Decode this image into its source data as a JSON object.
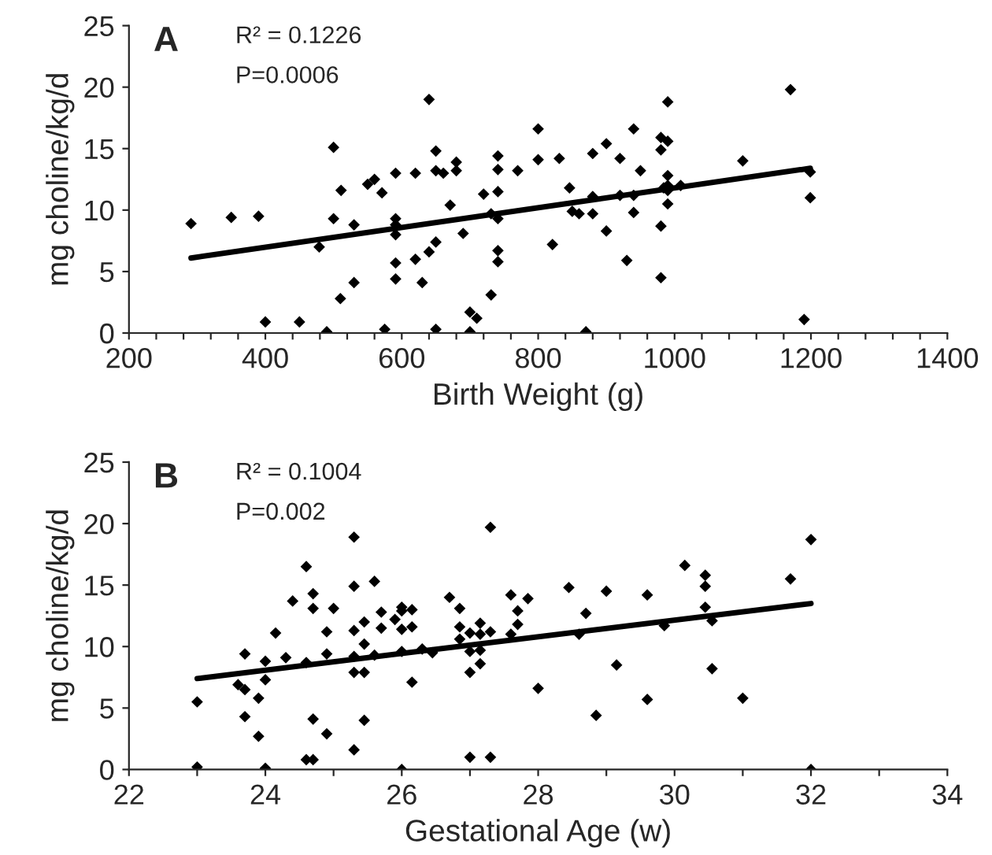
{
  "chart_data": [
    {
      "type": "scatter",
      "title": "A",
      "xlabel": "Birth Weight (g)",
      "ylabel": "mg choline/kg/d",
      "annotations": [
        "R² = 0.1226",
        "P=0.0006"
      ],
      "marker": "diamond",
      "grid": false,
      "legend": false,
      "xlim": [
        200,
        1400
      ],
      "ylim": [
        0,
        25
      ],
      "yticks": [
        0,
        5,
        10,
        15,
        20,
        25
      ],
      "xticks": [
        200,
        {
          "value": 240,
          "label": null
        },
        {
          "value": 280,
          "label": null
        },
        {
          "value": 320,
          "label": null
        },
        {
          "value": 360,
          "label": null
        },
        400,
        {
          "value": 440,
          "label": null
        },
        {
          "value": 480,
          "label": null
        },
        {
          "value": 520,
          "label": null
        },
        {
          "value": 560,
          "label": null
        },
        600,
        {
          "value": 640,
          "label": null
        },
        {
          "value": 680,
          "label": null
        },
        {
          "value": 720,
          "label": null
        },
        {
          "value": 760,
          "label": null
        },
        800,
        {
          "value": 840,
          "label": null
        },
        {
          "value": 880,
          "label": null
        },
        {
          "value": 920,
          "label": null
        },
        {
          "value": 960,
          "label": null
        },
        1000,
        {
          "value": 1040,
          "label": null
        },
        {
          "value": 1080,
          "label": null
        },
        {
          "value": 1120,
          "label": null
        },
        {
          "value": 1160,
          "label": null
        },
        1200,
        {
          "value": 1240,
          "label": null
        },
        {
          "value": 1280,
          "label": null
        },
        {
          "value": 1320,
          "label": null
        },
        {
          "value": 1360,
          "label": null
        },
        1400
      ],
      "series": [
        {
          "color": "#000000",
          "x": [
            291,
            350,
            390,
            400,
            450,
            479,
            490,
            500,
            500,
            511,
            510,
            530,
            530,
            550,
            560,
            571,
            575,
            591,
            591,
            591,
            591,
            591,
            591,
            620,
            620,
            630,
            640,
            640,
            650,
            650,
            650,
            650,
            661,
            671,
            680,
            680,
            690,
            700,
            700,
            710,
            720,
            731,
            731,
            741,
            741,
            741,
            741,
            741,
            741,
            770,
            800,
            800,
            831,
            846,
            821,
            850,
            860,
            870,
            880,
            880,
            880,
            900,
            900,
            920,
            920,
            930,
            940,
            940,
            940,
            950,
            980,
            980,
            980,
            980,
            990,
            990,
            990,
            990,
            990,
            990,
            984,
            1009,
            1100,
            1170,
            1190,
            1199,
            1199
          ],
          "values": [
            8.9,
            9.4,
            9.5,
            0.9,
            0.9,
            7.0,
            0.1,
            15.1,
            9.3,
            11.6,
            2.8,
            8.8,
            4.1,
            12.1,
            12.5,
            11.4,
            0.3,
            13.0,
            9.3,
            8.8,
            8.0,
            5.7,
            4.4,
            13.0,
            6.0,
            4.1,
            19.0,
            6.6,
            14.8,
            13.2,
            7.4,
            0.3,
            13.0,
            10.4,
            13.9,
            13.2,
            8.1,
            0.1,
            1.7,
            1.2,
            11.3,
            3.1,
            9.7,
            14.4,
            13.3,
            11.5,
            9.3,
            6.7,
            5.8,
            13.2,
            16.6,
            14.1,
            14.2,
            11.8,
            7.2,
            9.9,
            9.7,
            0.1,
            14.6,
            11.1,
            9.7,
            15.4,
            8.3,
            14.2,
            11.2,
            5.9,
            16.6,
            11.2,
            9.8,
            13.2,
            15.9,
            14.9,
            8.7,
            4.5,
            18.8,
            15.6,
            12.8,
            12.0,
            11.6,
            10.5,
            11.8,
            12.0,
            14.0,
            19.8,
            1.1,
            13.1,
            11.0
          ]
        },
        {
          "type": "line",
          "color": "#000000",
          "marker": "none",
          "x": [
            291,
            1199
          ],
          "values": [
            6.1,
            13.4
          ]
        }
      ]
    },
    {
      "type": "scatter",
      "title": "B",
      "xlabel": "Gestational Age (w)",
      "ylabel": "mg choline/kg/d",
      "annotations": [
        "R² = 0.1004",
        "P=0.002"
      ],
      "marker": "diamond",
      "grid": false,
      "legend": false,
      "xlim": [
        22,
        34
      ],
      "ylim": [
        0,
        25
      ],
      "yticks": [
        0,
        5,
        10,
        15,
        20,
        25
      ],
      "xticks": [
        22,
        {
          "value": 23,
          "label": null
        },
        24,
        {
          "value": 25,
          "label": null
        },
        26,
        {
          "value": 27,
          "label": null
        },
        28,
        {
          "value": 29,
          "label": null
        },
        30,
        {
          "value": 31,
          "label": null
        },
        32,
        {
          "value": 33,
          "label": null
        },
        34
      ],
      "series": [
        {
          "color": "#000000",
          "x": [
            23.0,
            23.0,
            23.6,
            23.7,
            23.7,
            23.7,
            23.9,
            23.9,
            24.0,
            24.0,
            24.0,
            24.15,
            24.3,
            24.4,
            24.6,
            24.6,
            24.6,
            24.7,
            24.7,
            24.7,
            24.7,
            24.9,
            24.9,
            24.9,
            25.0,
            25.3,
            25.3,
            25.3,
            25.3,
            25.3,
            25.3,
            25.45,
            25.45,
            25.45,
            25.45,
            25.6,
            25.6,
            25.7,
            25.7,
            25.9,
            26.0,
            26.0,
            26.0,
            26.0,
            26.0,
            26.15,
            26.15,
            26.15,
            26.3,
            26.45,
            26.7,
            26.85,
            26.85,
            26.85,
            27.0,
            27.0,
            27.0,
            27.0,
            27.15,
            27.15,
            27.15,
            27.15,
            27.3,
            27.3,
            27.3,
            27.6,
            27.6,
            27.7,
            27.7,
            27.85,
            28.0,
            28.45,
            28.6,
            28.7,
            28.85,
            29.0,
            29.15,
            29.6,
            29.6,
            29.85,
            30.15,
            30.45,
            30.45,
            30.45,
            30.55,
            30.55,
            31.0,
            31.7,
            32.0,
            32.0
          ],
          "values": [
            5.5,
            0.2,
            6.9,
            9.4,
            6.5,
            4.3,
            5.8,
            2.7,
            8.8,
            7.3,
            0.1,
            11.1,
            9.1,
            13.7,
            8.7,
            16.5,
            0.8,
            14.3,
            13.1,
            4.1,
            0.8,
            11.2,
            9.4,
            2.9,
            13.1,
            18.9,
            14.9,
            11.3,
            9.2,
            7.9,
            1.6,
            12.0,
            10.2,
            7.9,
            4.0,
            15.3,
            9.3,
            12.8,
            11.5,
            12.2,
            13.2,
            12.9,
            11.4,
            9.6,
            0.0,
            13.0,
            11.6,
            7.1,
            9.8,
            9.5,
            14.0,
            13.1,
            11.6,
            10.6,
            11.1,
            9.6,
            7.9,
            1.0,
            11.9,
            11.0,
            9.7,
            8.6,
            19.7,
            11.2,
            1.0,
            14.2,
            11.0,
            12.9,
            11.8,
            13.9,
            6.6,
            14.8,
            11.0,
            12.7,
            4.4,
            14.5,
            8.5,
            14.2,
            5.7,
            11.7,
            16.6,
            15.8,
            14.9,
            13.2,
            12.1,
            8.2,
            5.8,
            15.5,
            18.7,
            0.0
          ]
        },
        {
          "type": "line",
          "color": "#000000",
          "marker": "none",
          "x": [
            23,
            32
          ],
          "values": [
            7.4,
            13.5
          ]
        }
      ]
    }
  ]
}
